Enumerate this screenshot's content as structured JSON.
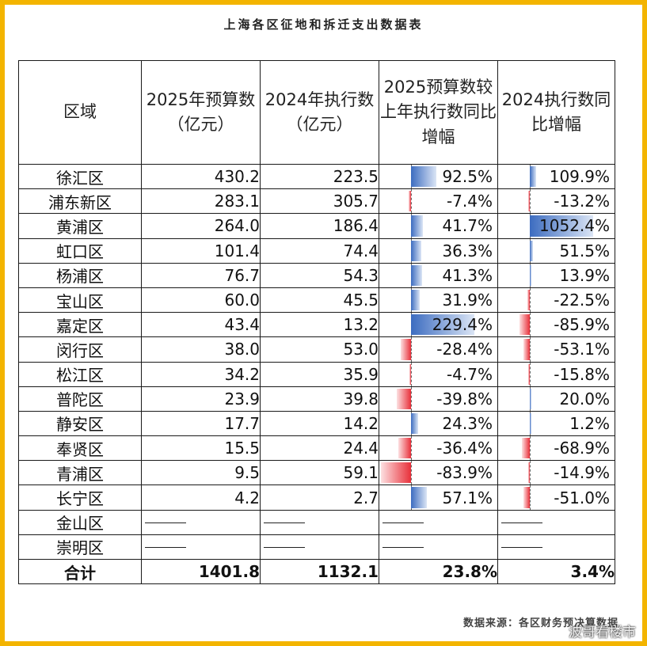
{
  "title": "上海各区征地和拆迁支出数据表",
  "table": {
    "headers": [
      "区域",
      "2025年预算数（亿元）",
      "2024年执行数（亿元）",
      "2025预算数较上年执行数同比增幅",
      "2024执行数同比增幅"
    ],
    "rows": [
      {
        "region": "徐汇区",
        "budget_2025": "430.2",
        "actual_2024": "223.5",
        "growth_2025": "92.5%",
        "growth_2024": "109.9%"
      },
      {
        "region": "浦东新区",
        "budget_2025": "283.1",
        "actual_2024": "305.7",
        "growth_2025": "-7.4%",
        "growth_2024": "-13.2%"
      },
      {
        "region": "黄浦区",
        "budget_2025": "264.0",
        "actual_2024": "186.4",
        "growth_2025": "41.7%",
        "growth_2024": "1052.4%"
      },
      {
        "region": "虹口区",
        "budget_2025": "101.4",
        "actual_2024": "74.4",
        "growth_2025": "36.3%",
        "growth_2024": "51.5%"
      },
      {
        "region": "杨浦区",
        "budget_2025": "76.7",
        "actual_2024": "54.3",
        "growth_2025": "41.3%",
        "growth_2024": "13.9%"
      },
      {
        "region": "宝山区",
        "budget_2025": "60.0",
        "actual_2024": "45.5",
        "growth_2025": "31.9%",
        "growth_2024": "-22.5%"
      },
      {
        "region": "嘉定区",
        "budget_2025": "43.4",
        "actual_2024": "13.2",
        "growth_2025": "229.4%",
        "growth_2024": "-85.9%"
      },
      {
        "region": "闵行区",
        "budget_2025": "38.0",
        "actual_2024": "53.0",
        "growth_2025": "-28.4%",
        "growth_2024": "-53.1%"
      },
      {
        "region": "松江区",
        "budget_2025": "34.2",
        "actual_2024": "35.9",
        "growth_2025": "-4.7%",
        "growth_2024": "-15.8%"
      },
      {
        "region": "普陀区",
        "budget_2025": "23.9",
        "actual_2024": "39.8",
        "growth_2025": "-39.8%",
        "growth_2024": "20.0%"
      },
      {
        "region": "静安区",
        "budget_2025": "17.7",
        "actual_2024": "14.2",
        "growth_2025": "24.3%",
        "growth_2024": "1.2%"
      },
      {
        "region": "奉贤区",
        "budget_2025": "15.5",
        "actual_2024": "24.4",
        "growth_2025": "-36.4%",
        "growth_2024": "-68.9%"
      },
      {
        "region": "青浦区",
        "budget_2025": "9.5",
        "actual_2024": "59.1",
        "growth_2025": "-83.9%",
        "growth_2024": "-14.9%"
      },
      {
        "region": "长宁区",
        "budget_2025": "4.2",
        "actual_2024": "2.7",
        "growth_2025": "57.1%",
        "growth_2024": "-51.0%"
      }
    ],
    "blank_rows": [
      {
        "region": "金山区"
      },
      {
        "region": "崇明区"
      }
    ],
    "total": {
      "label": "合计",
      "budget_2025": "1401.8",
      "actual_2024": "1132.1",
      "growth_2025": "23.8%",
      "growth_2024": "3.4%"
    }
  },
  "colors": {
    "positive_bar": "#3c6cc0",
    "negative_bar": "#e8303a",
    "border": "#1a1a1a",
    "frame": "#f3b400"
  },
  "source": "数据来源：各区财务预决算数据",
  "watermark": "波哥看楼市"
}
